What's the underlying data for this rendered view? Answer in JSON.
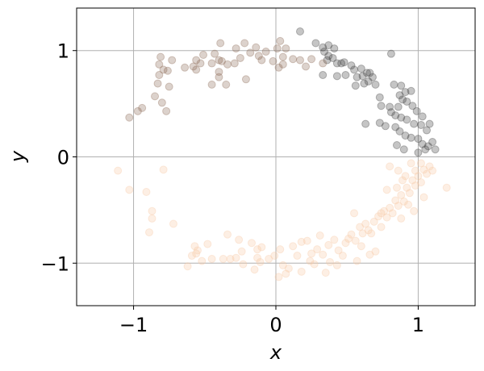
{
  "chart_data": {
    "type": "scatter",
    "title": "",
    "xlabel": "x",
    "ylabel": "y",
    "xlim": [
      -1.4,
      1.4
    ],
    "ylim": [
      -1.4,
      1.4
    ],
    "xticks": [
      -1,
      0,
      1
    ],
    "yticks": [
      -1,
      0,
      1
    ],
    "xtick_labels": [
      "−1",
      "0",
      "1"
    ],
    "ytick_labels": [
      "−1",
      "0",
      "1"
    ],
    "grid": true,
    "point_opacity": 0.3,
    "series": [
      {
        "color": "#404040",
        "points": [
          [
            0.17,
            1.18
          ],
          [
            0.28,
            1.07
          ],
          [
            0.33,
            1.03
          ],
          [
            0.37,
            1.05
          ],
          [
            0.41,
            1.02
          ],
          [
            0.34,
            0.99
          ],
          [
            0.36,
            0.91
          ],
          [
            0.37,
            0.95
          ],
          [
            0.4,
            0.93
          ],
          [
            0.46,
            0.88
          ],
          [
            0.48,
            0.89
          ],
          [
            0.43,
            0.88
          ],
          [
            0.53,
            0.86
          ],
          [
            0.55,
            0.82
          ],
          [
            0.6,
            0.83
          ],
          [
            0.64,
            0.79
          ],
          [
            0.66,
            0.79
          ],
          [
            0.68,
            0.75
          ],
          [
            0.61,
            0.76
          ],
          [
            0.65,
            0.71
          ],
          [
            0.57,
            0.75
          ],
          [
            0.49,
            0.77
          ],
          [
            0.43,
            0.76
          ],
          [
            0.33,
            0.77
          ],
          [
            0.56,
            0.67
          ],
          [
            0.62,
            0.69
          ],
          [
            0.7,
            0.68
          ],
          [
            0.73,
            0.56
          ],
          [
            0.74,
            0.48
          ],
          [
            0.8,
            0.47
          ],
          [
            0.81,
            0.42
          ],
          [
            0.86,
            0.47
          ],
          [
            0.83,
            0.68
          ],
          [
            0.88,
            0.67
          ],
          [
            0.91,
            0.61
          ],
          [
            0.95,
            0.62
          ],
          [
            0.89,
            0.54
          ],
          [
            0.92,
            0.52
          ],
          [
            0.96,
            0.48
          ],
          [
            0.99,
            0.43
          ],
          [
            1.03,
            0.38
          ],
          [
            0.84,
            0.39
          ],
          [
            0.88,
            0.37
          ],
          [
            0.92,
            0.35
          ],
          [
            0.97,
            0.31
          ],
          [
            1.02,
            0.3
          ],
          [
            1.06,
            0.25
          ],
          [
            1.08,
            0.31
          ],
          [
            0.87,
            0.24
          ],
          [
            0.91,
            0.2
          ],
          [
            0.95,
            0.18
          ],
          [
            1.0,
            0.17
          ],
          [
            1.03,
            0.12
          ],
          [
            1.07,
            0.1
          ],
          [
            0.85,
            0.11
          ],
          [
            0.9,
            0.07
          ],
          [
            1.0,
            0.04
          ],
          [
            1.05,
            0.07
          ],
          [
            1.12,
            0.07
          ],
          [
            1.1,
            0.14
          ],
          [
            0.73,
            0.32
          ],
          [
            0.77,
            0.29
          ],
          [
            0.63,
            0.31
          ],
          [
            0.81,
            0.97
          ],
          [
            0.87,
            0.58
          ],
          [
            0.84,
            0.28
          ]
        ]
      },
      {
        "color": "#8b6b55",
        "points": [
          [
            -0.94,
            0.46
          ],
          [
            -0.97,
            0.43
          ],
          [
            -1.03,
            0.37
          ],
          [
            -0.85,
            0.57
          ],
          [
            -0.8,
            0.51
          ],
          [
            -0.77,
            0.43
          ],
          [
            -0.83,
            0.69
          ],
          [
            -0.75,
            0.66
          ],
          [
            -0.82,
            0.77
          ],
          [
            -0.79,
            0.82
          ],
          [
            -0.76,
            0.81
          ],
          [
            -0.82,
            0.87
          ],
          [
            -0.81,
            0.94
          ],
          [
            -0.73,
            0.91
          ],
          [
            -0.64,
            0.84
          ],
          [
            -0.58,
            0.85
          ],
          [
            -0.53,
            0.88
          ],
          [
            -0.56,
            0.91
          ],
          [
            -0.51,
            0.96
          ],
          [
            -0.45,
            0.88
          ],
          [
            -0.4,
            0.91
          ],
          [
            -0.43,
            0.97
          ],
          [
            -0.38,
            0.9
          ],
          [
            -0.45,
            0.68
          ],
          [
            -0.4,
            0.75
          ],
          [
            -0.34,
            0.87
          ],
          [
            -0.28,
            1.02
          ],
          [
            -0.25,
            0.93
          ],
          [
            -0.22,
            1.07
          ],
          [
            -0.14,
            1.03
          ],
          [
            -0.18,
            0.98
          ],
          [
            -0.12,
            0.95
          ],
          [
            -0.07,
            0.99
          ],
          [
            -0.02,
            0.9
          ],
          [
            0.05,
            0.94
          ],
          [
            0.01,
            1.02
          ],
          [
            0.03,
            1.09
          ],
          [
            0.07,
            1.02
          ],
          [
            -0.1,
            0.91
          ],
          [
            0.12,
            0.92
          ],
          [
            0.05,
            0.87
          ],
          [
            0.17,
            0.91
          ],
          [
            0.25,
            0.92
          ],
          [
            0.21,
            0.85
          ],
          [
            0.33,
            0.88
          ],
          [
            0.02,
            0.84
          ],
          [
            -0.39,
            1.07
          ],
          [
            -0.21,
            0.73
          ],
          [
            -0.29,
            0.88
          ],
          [
            -0.35,
            0.68
          ],
          [
            -0.4,
            0.8
          ],
          [
            -0.56,
            0.82
          ]
        ]
      },
      {
        "color": "#f7c9a5",
        "points": [
          [
            -1.11,
            -0.13
          ],
          [
            -1.03,
            -0.31
          ],
          [
            -0.91,
            -0.33
          ],
          [
            -0.79,
            -0.12
          ],
          [
            -0.87,
            -0.51
          ],
          [
            -0.87,
            -0.58
          ],
          [
            -0.89,
            -0.71
          ],
          [
            -0.72,
            -0.63
          ],
          [
            -0.57,
            -0.84
          ],
          [
            -0.55,
            -0.88
          ],
          [
            -0.59,
            -0.93
          ],
          [
            -0.62,
            -1.03
          ],
          [
            -0.52,
            -0.98
          ],
          [
            -0.45,
            -0.96
          ],
          [
            -0.48,
            -0.82
          ],
          [
            -0.34,
            -0.73
          ],
          [
            -0.32,
            -0.96
          ],
          [
            -0.26,
            -0.78
          ],
          [
            -0.24,
            -0.89
          ],
          [
            -0.28,
            -0.95
          ],
          [
            -0.23,
            -1.01
          ],
          [
            -0.15,
            -1.06
          ],
          [
            -0.13,
            -0.95
          ],
          [
            -0.11,
            -0.99
          ],
          [
            -0.05,
            -0.96
          ],
          [
            -0.17,
            -0.81
          ],
          [
            -0.13,
            -0.87
          ],
          [
            -0.1,
            -0.85
          ],
          [
            0.03,
            -0.87
          ],
          [
            0.05,
            -1.02
          ],
          [
            0.07,
            -1.1
          ],
          [
            0.02,
            -1.13
          ],
          [
            0.12,
            -0.84
          ],
          [
            0.15,
            -0.93
          ],
          [
            0.18,
            -0.8
          ],
          [
            0.22,
            -0.79
          ],
          [
            0.24,
            -0.98
          ],
          [
            0.27,
            -1.01
          ],
          [
            0.29,
            -0.87
          ],
          [
            0.33,
            -0.92
          ],
          [
            0.37,
            -0.83
          ],
          [
            0.38,
            -0.99
          ],
          [
            0.44,
            -0.88
          ],
          [
            0.47,
            -0.93
          ],
          [
            0.49,
            -0.81
          ],
          [
            0.51,
            -0.77
          ],
          [
            0.53,
            -0.73
          ],
          [
            0.56,
            -0.79
          ],
          [
            0.59,
            -0.66
          ],
          [
            0.61,
            -0.72
          ],
          [
            0.63,
            -0.63
          ],
          [
            0.65,
            -0.69
          ],
          [
            0.67,
            -0.72
          ],
          [
            0.69,
            -0.61
          ],
          [
            0.72,
            -0.56
          ],
          [
            0.74,
            -0.66
          ],
          [
            0.76,
            -0.51
          ],
          [
            0.78,
            -0.57
          ],
          [
            0.8,
            -0.48
          ],
          [
            0.82,
            -0.53
          ],
          [
            0.84,
            -0.41
          ],
          [
            0.86,
            -0.46
          ],
          [
            0.88,
            -0.36
          ],
          [
            0.9,
            -0.42
          ],
          [
            0.92,
            -0.29
          ],
          [
            0.94,
            -0.34
          ],
          [
            0.96,
            -0.22
          ],
          [
            0.98,
            -0.27
          ],
          [
            1.0,
            -0.18
          ],
          [
            1.02,
            -0.24
          ],
          [
            1.04,
            -0.12
          ],
          [
            1.06,
            -0.16
          ],
          [
            1.08,
            -0.09
          ],
          [
            1.1,
            -0.13
          ],
          [
            0.8,
            -0.09
          ],
          [
            0.86,
            -0.13
          ],
          [
            0.89,
            -0.22
          ],
          [
            0.95,
            -0.06
          ],
          [
            1.02,
            -0.06
          ],
          [
            0.98,
            -0.13
          ],
          [
            0.91,
            -0.18
          ],
          [
            0.78,
            -0.31
          ],
          [
            0.85,
            -0.29
          ],
          [
            0.93,
            -0.45
          ],
          [
            1.2,
            -0.29
          ],
          [
            1.04,
            -0.38
          ],
          [
            0.97,
            -0.51
          ],
          [
            0.88,
            -0.58
          ],
          [
            0.74,
            -0.53
          ],
          [
            0.55,
            -0.53
          ],
          [
            0.66,
            -0.92
          ],
          [
            0.57,
            -0.98
          ],
          [
            0.7,
            -0.89
          ],
          [
            0.41,
            -0.78
          ],
          [
            0.31,
            -0.74
          ],
          [
            0.09,
            -1.05
          ],
          [
            -0.56,
            -0.91
          ],
          [
            0.18,
            -1.08
          ],
          [
            0.43,
            -1.02
          ],
          [
            0.35,
            -1.09
          ],
          [
            -0.01,
            -0.93
          ],
          [
            -0.37,
            -0.96
          ],
          [
            0.25,
            -0.91
          ],
          [
            0.6,
            -0.84
          ]
        ]
      }
    ]
  }
}
